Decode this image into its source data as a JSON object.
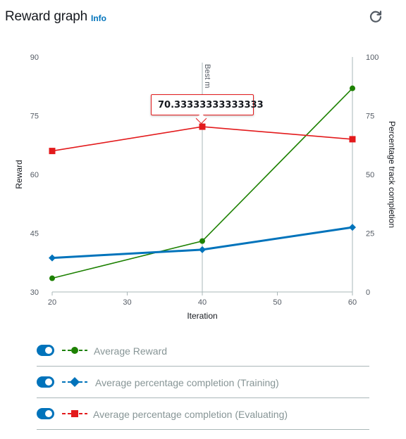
{
  "header": {
    "title": "Reward graph",
    "info_label": "Info",
    "refresh_icon": "refresh-icon"
  },
  "legend": [
    {
      "label": "Average Reward",
      "color": "#1d8102",
      "marker": "circle",
      "enabled": true
    },
    {
      "label": "Average percentage completion (Training)",
      "color": "#0073bb",
      "marker": "diamond",
      "enabled": true
    },
    {
      "label": "Average percentage completion (Evaluating)",
      "color": "#e31a1c",
      "marker": "square",
      "enabled": true
    }
  ],
  "tooltip": {
    "text": "70.33333333333333"
  },
  "chart_data": {
    "type": "line",
    "x": [
      20,
      40,
      60
    ],
    "xlabel": "Iteration",
    "ylabel": "Reward",
    "y2label": "Percentage track completion",
    "xlim": [
      20,
      60
    ],
    "ylim": [
      30,
      90
    ],
    "y2lim": [
      0,
      100
    ],
    "xticks": [
      "20",
      "30",
      "40",
      "50",
      "60"
    ],
    "yticks": [
      "30",
      "45",
      "60",
      "75",
      "90"
    ],
    "y2ticks": [
      "0",
      "25",
      "50",
      "75",
      "100"
    ],
    "marker_line": {
      "x": 40,
      "label": "Best m"
    },
    "series": [
      {
        "name": "Average Reward",
        "axis": "left",
        "color": "#1d8102",
        "marker": "circle",
        "values": [
          33.5,
          43,
          82
        ]
      },
      {
        "name": "Average percentage completion (Training)",
        "axis": "right",
        "color": "#0073bb",
        "marker": "diamond",
        "values": [
          14.5,
          18,
          27.5
        ]
      },
      {
        "name": "Average percentage completion (Evaluating)",
        "axis": "right",
        "color": "#e31a1c",
        "marker": "square",
        "values": [
          60,
          70.33333333333333,
          65
        ]
      }
    ],
    "grid": false
  }
}
